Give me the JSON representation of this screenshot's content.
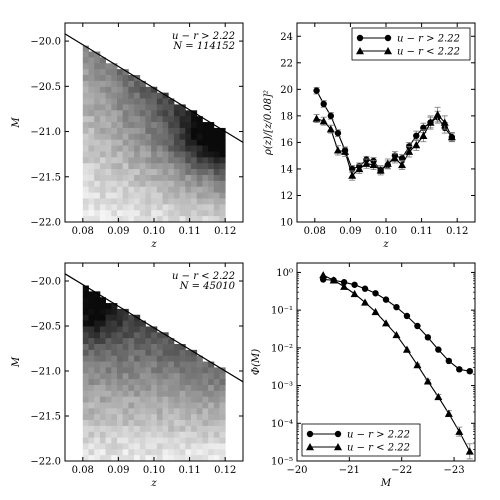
{
  "chart_data": [
    {
      "id": "a",
      "type": "heatmap",
      "xlabel": "z",
      "ylabel": "M",
      "xlim": [
        0.075,
        0.125
      ],
      "ylim": [
        -22.0,
        -19.8
      ],
      "y_inverted": true,
      "xticks": [
        0.08,
        0.09,
        0.1,
        0.11,
        0.12
      ],
      "xtick_labels": [
        "0.08",
        "0.09",
        "0.10",
        "0.11",
        "0.12"
      ],
      "yticks": [
        -20.0,
        -20.5,
        -21.0,
        -21.5,
        -22.0
      ],
      "ytick_labels": [
        "−20.0",
        "−20.5",
        "−21.0",
        "−21.5",
        "−22.0"
      ],
      "annotation_lines": [
        "u − r > 2.22",
        "N = 114152"
      ],
      "limit_line": [
        [
          0.075,
          -19.92
        ],
        [
          0.125,
          -21.12
        ]
      ],
      "grid": {
        "x_start": 0.08,
        "x_end": 0.12,
        "nx": 25,
        "y_start": -20.05,
        "y_end": -22.0,
        "ny": 30
      },
      "colormap": "gray_r",
      "peak_z": 0.118,
      "peak_M": -21.1
    },
    {
      "id": "b",
      "type": "line",
      "xlabel": "z",
      "ylabel": "ρ(z)/[z/0.08]²",
      "xlim": [
        0.075,
        0.125
      ],
      "ylim": [
        10,
        25
      ],
      "xticks": [
        0.08,
        0.09,
        0.1,
        0.11,
        0.12
      ],
      "xtick_labels": [
        "0.08",
        "0.09",
        "0.10",
        "0.11",
        "0.12"
      ],
      "yticks": [
        10,
        12,
        14,
        16,
        18,
        20,
        22,
        24
      ],
      "ytick_labels": [
        "10",
        "12",
        "14",
        "16",
        "18",
        "20",
        "22",
        "24"
      ],
      "legend": "top-right",
      "series": [
        {
          "name": "u − r > 2.22",
          "marker": "circle",
          "x": [
            0.0805,
            0.0825,
            0.0845,
            0.0865,
            0.0885,
            0.0905,
            0.0925,
            0.0945,
            0.0965,
            0.0985,
            0.1005,
            0.1025,
            0.1045,
            0.1065,
            0.1085,
            0.1105,
            0.1125,
            0.1145,
            0.1165,
            0.1185
          ],
          "y": [
            19.9,
            18.9,
            18.0,
            16.7,
            15.4,
            14.0,
            14.2,
            14.7,
            14.6,
            13.9,
            14.3,
            15.0,
            14.8,
            15.7,
            16.5,
            17.1,
            17.5,
            17.9,
            17.1,
            16.4
          ],
          "yerr": [
            0.25,
            0.25,
            0.25,
            0.25,
            0.25,
            0.25,
            0.25,
            0.25,
            0.25,
            0.25,
            0.3,
            0.3,
            0.3,
            0.3,
            0.35,
            0.35,
            0.4,
            0.45,
            0.4,
            0.3
          ]
        },
        {
          "name": "u − r < 2.22",
          "marker": "triangle",
          "x": [
            0.0805,
            0.0825,
            0.0845,
            0.0865,
            0.0885,
            0.0905,
            0.0925,
            0.0945,
            0.0965,
            0.0985,
            0.1005,
            0.1025,
            0.1045,
            0.1065,
            0.1085,
            0.1105,
            0.1125,
            0.1145,
            0.1165,
            0.1185
          ],
          "y": [
            17.8,
            17.6,
            17.0,
            15.4,
            15.3,
            13.5,
            14.0,
            14.4,
            14.3,
            13.9,
            14.4,
            14.8,
            14.3,
            15.3,
            15.8,
            16.5,
            17.5,
            18.1,
            17.5,
            16.4
          ],
          "yerr": [
            0.3,
            0.3,
            0.3,
            0.35,
            0.35,
            0.35,
            0.35,
            0.35,
            0.35,
            0.35,
            0.35,
            0.35,
            0.35,
            0.4,
            0.4,
            0.45,
            0.5,
            0.55,
            0.5,
            0.35
          ]
        }
      ]
    },
    {
      "id": "c",
      "type": "heatmap",
      "xlabel": "z",
      "ylabel": "M",
      "xlim": [
        0.075,
        0.125
      ],
      "ylim": [
        -22.0,
        -19.8
      ],
      "y_inverted": true,
      "xticks": [
        0.08,
        0.09,
        0.1,
        0.11,
        0.12
      ],
      "xtick_labels": [
        "0.08",
        "0.09",
        "0.10",
        "0.11",
        "0.12"
      ],
      "yticks": [
        -20.0,
        -20.5,
        -21.0,
        -21.5,
        -22.0
      ],
      "ytick_labels": [
        "−20.0",
        "−20.5",
        "−21.0",
        "−21.5",
        "−22.0"
      ],
      "annotation_lines": [
        "u − r < 2.22",
        "N = 45010"
      ],
      "limit_line": [
        [
          0.075,
          -19.92
        ],
        [
          0.125,
          -21.12
        ]
      ],
      "grid": {
        "x_start": 0.08,
        "x_end": 0.12,
        "nx": 25,
        "y_start": -20.05,
        "y_end": -22.0,
        "ny": 30
      },
      "colormap": "gray_r",
      "peak_z": 0.083,
      "peak_M": -20.35
    },
    {
      "id": "d",
      "type": "line",
      "xlabel": "M",
      "ylabel": "Φ(M)",
      "xlim": [
        -20.0,
        -23.4
      ],
      "y_scale": "log",
      "ylim_exp": [
        -5,
        0.25
      ],
      "xticks": [
        -20,
        -21,
        -22,
        -23
      ],
      "xtick_labels": [
        "−20",
        "−21",
        "−22",
        "−23"
      ],
      "yticks_exp": [
        0,
        -1,
        -2,
        -3,
        -4,
        -5
      ],
      "ytick_labels": [
        "10⁰",
        "10⁻¹",
        "10⁻²",
        "10⁻³",
        "10⁻⁴",
        "10⁻⁵"
      ],
      "legend": "bottom-left",
      "series": [
        {
          "name": "u − r > 2.22",
          "marker": "circle",
          "x": [
            -20.5,
            -20.7,
            -20.9,
            -21.1,
            -21.3,
            -21.5,
            -21.7,
            -21.9,
            -22.1,
            -22.3,
            -22.5,
            -22.7,
            -22.9,
            -23.1,
            -23.3
          ],
          "y": [
            0.65,
            0.62,
            0.55,
            0.47,
            0.37,
            0.28,
            0.19,
            0.12,
            0.07,
            0.038,
            0.019,
            0.009,
            0.0045,
            0.0027,
            0.0024
          ],
          "yerr_dex": [
            0,
            0,
            0,
            0,
            0,
            0,
            0,
            0,
            0,
            0,
            0,
            0,
            0.03,
            0.04,
            0.05
          ]
        },
        {
          "name": "u − r < 2.22",
          "marker": "triangle",
          "x": [
            -20.5,
            -20.7,
            -20.9,
            -21.1,
            -21.3,
            -21.5,
            -21.7,
            -21.9,
            -22.1,
            -22.3,
            -22.5,
            -22.7,
            -22.9,
            -23.1,
            -23.3
          ],
          "y": [
            0.85,
            0.62,
            0.42,
            0.27,
            0.16,
            0.09,
            0.045,
            0.022,
            0.009,
            0.0035,
            0.0013,
            0.0005,
            0.00018,
            6e-05,
            1.8e-05
          ],
          "yerr_dex": [
            0,
            0,
            0,
            0,
            0,
            0,
            0,
            0,
            0,
            0.03,
            0.04,
            0.06,
            0.08,
            0.12,
            0.2
          ]
        }
      ]
    }
  ]
}
